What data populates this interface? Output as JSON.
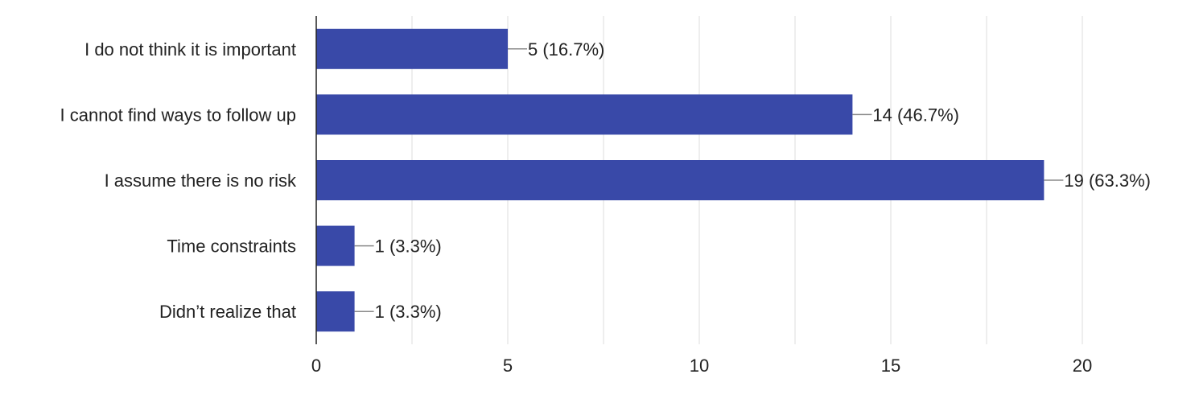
{
  "chart_data": {
    "type": "bar",
    "orientation": "horizontal",
    "categories": [
      "I do not think it is important",
      "I cannot find ways to follow up",
      "I assume there is no risk",
      "Time constraints",
      "Didn’t realize that"
    ],
    "values": [
      5,
      14,
      19,
      1,
      1
    ],
    "data_labels": [
      "5 (16.7%)",
      "14 (46.7%)",
      "19 (63.3%)",
      "1 (3.3%)",
      "1 (3.3%)"
    ],
    "xlim": [
      0,
      20
    ],
    "x_ticks": [
      0,
      5,
      10,
      15,
      20
    ],
    "x_tick_labels": [
      "0",
      "5",
      "10",
      "15",
      "20"
    ],
    "title": "",
    "xlabel": "",
    "ylabel": "",
    "grid": true,
    "legend": "none",
    "colors": {
      "bar": "#3949A8",
      "grid": "#E3E3E3",
      "axis": "#222222",
      "leader": "#8A8A8A",
      "text": "#222222"
    }
  }
}
